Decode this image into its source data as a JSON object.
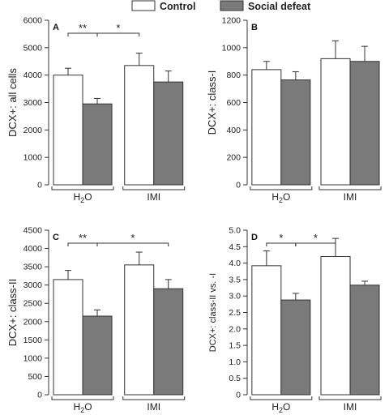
{
  "legend": {
    "items": [
      {
        "label": "Control",
        "color": "#ffffff"
      },
      {
        "label": "Social defeat",
        "color": "#7a7a7a"
      }
    ]
  },
  "colors": {
    "control": "#ffffff",
    "social_defeat": "#7a7a7a",
    "stroke": "#333333"
  },
  "chart_data": [
    {
      "type": "bar",
      "panel": "A",
      "ylabel": "DCX+: all cells",
      "ylim": [
        0,
        6000
      ],
      "yticks": [
        0,
        1000,
        2000,
        3000,
        4000,
        5000,
        6000
      ],
      "ytick_labels": [
        "0",
        "1000",
        "2000",
        "3000",
        "4000",
        "5000",
        "6000"
      ],
      "groups": [
        "H2O",
        "IMI"
      ],
      "series": [
        {
          "name": "Control",
          "values": [
            4000,
            4350
          ],
          "errors": [
            250,
            450
          ]
        },
        {
          "name": "Social defeat",
          "values": [
            2950,
            3750
          ],
          "errors": [
            200,
            400
          ]
        }
      ],
      "significance": [
        {
          "from_group": 0,
          "from_series": 0,
          "to_group": 0,
          "to_series": 1,
          "label": "**"
        },
        {
          "from_group": 0,
          "from_series": 1,
          "to_group": 1,
          "to_series": 0,
          "label": "*"
        }
      ]
    },
    {
      "type": "bar",
      "panel": "B",
      "ylabel": "DCX+: class-I",
      "ylim": [
        0,
        1200
      ],
      "yticks": [
        0,
        200,
        400,
        600,
        800,
        1000,
        1200
      ],
      "ytick_labels": [
        "0",
        "200",
        "400",
        "600",
        "800",
        "1000",
        "1200"
      ],
      "groups": [
        "H2O",
        "IMI"
      ],
      "series": [
        {
          "name": "Control",
          "values": [
            840,
            920
          ],
          "errors": [
            60,
            130
          ]
        },
        {
          "name": "Social defeat",
          "values": [
            765,
            900
          ],
          "errors": [
            60,
            110
          ]
        }
      ],
      "significance": []
    },
    {
      "type": "bar",
      "panel": "C",
      "ylabel": "DCX+: class-II",
      "ylim": [
        0,
        4500
      ],
      "yticks": [
        0,
        500,
        1000,
        1500,
        2000,
        2500,
        3000,
        3500,
        4000,
        4500
      ],
      "ytick_labels": [
        "0",
        "500",
        "1000",
        "1500",
        "2000",
        "2500",
        "3000",
        "3500",
        "4000",
        "4500"
      ],
      "groups": [
        "H2O",
        "IMI"
      ],
      "series": [
        {
          "name": "Control",
          "values": [
            3150,
            3550
          ],
          "errors": [
            250,
            350
          ]
        },
        {
          "name": "Social defeat",
          "values": [
            2150,
            2900
          ],
          "errors": [
            170,
            250
          ]
        }
      ],
      "significance": [
        {
          "from_group": 0,
          "from_series": 0,
          "to_group": 0,
          "to_series": 1,
          "label": "**"
        },
        {
          "from_group": 0,
          "from_series": 1,
          "to_group": 1,
          "to_series": 1,
          "label": "*"
        }
      ]
    },
    {
      "type": "bar",
      "panel": "D",
      "ylabel": "DCX+: class-II vs. -I",
      "ylim": [
        0,
        5.0
      ],
      "yticks": [
        0,
        0.5,
        1.0,
        1.5,
        2.0,
        2.5,
        3.0,
        3.5,
        4.0,
        4.5,
        5.0
      ],
      "ytick_labels": [
        "0",
        "0.5",
        "1.0",
        "1.5",
        "2.0",
        "2.5",
        "3.0",
        "3.5",
        "4.0",
        "4.5",
        "5.0"
      ],
      "groups": [
        "H2O",
        "IMI"
      ],
      "series": [
        {
          "name": "Control",
          "values": [
            3.92,
            4.2
          ],
          "errors": [
            0.45,
            0.55
          ]
        },
        {
          "name": "Social defeat",
          "values": [
            2.88,
            3.33
          ],
          "errors": [
            0.2,
            0.12
          ]
        }
      ],
      "significance": [
        {
          "from_group": 0,
          "from_series": 0,
          "to_group": 0,
          "to_series": 1,
          "label": "*"
        },
        {
          "from_group": 0,
          "from_series": 1,
          "to_group": 1,
          "to_series": 0,
          "label": "*"
        }
      ]
    }
  ]
}
